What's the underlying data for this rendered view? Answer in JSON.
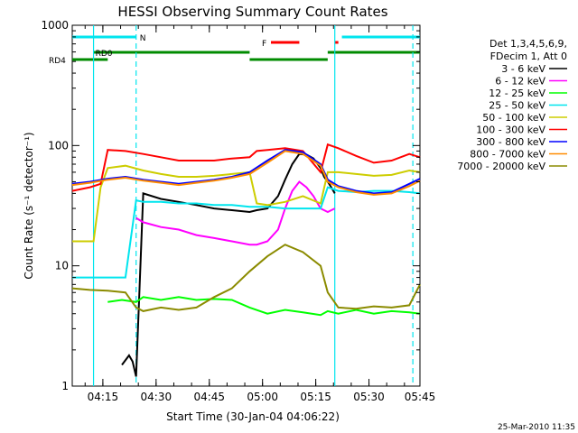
{
  "chart_data": {
    "type": "line",
    "title": "HESSI Observing Summary Count Rates",
    "xlabel": "Start Time (30-Jan-04 04:06:22)",
    "ylabel": "Count Rate (s⁻¹ detector⁻¹)",
    "x_units": "minutes since 04:06:22",
    "xlim": [
      0,
      98
    ],
    "ylim": [
      1,
      1000
    ],
    "y_scale": "log",
    "x_ticks": [
      "04:15",
      "04:30",
      "04:45",
      "05:00",
      "05:15",
      "05:30",
      "05:45"
    ],
    "y_ticks": [
      "1",
      "10",
      "100",
      "1000"
    ],
    "legend_header": [
      "Det 1,3,4,5,6,9,",
      "FDecim 1, Att 0"
    ],
    "footer_date": "25-Mar-2010 11:35",
    "flags": [
      {
        "label": "N",
        "color": "#00e5ee",
        "segments": [
          [
            0,
            18
          ],
          [
            76,
            98
          ]
        ]
      },
      {
        "label": "F",
        "color": "#ff0000",
        "segments": [
          [
            56,
            64
          ],
          [
            74,
            75
          ]
        ]
      },
      {
        "label": "RD0",
        "color": "#008b00",
        "segments": [
          [
            6,
            50
          ],
          [
            72,
            98
          ]
        ]
      },
      {
        "label": "RD4",
        "color": "#008b00",
        "segments": [
          [
            0,
            10
          ],
          [
            50,
            72
          ]
        ]
      }
    ],
    "vertical_lines": [
      {
        "x": 6,
        "style": "solid",
        "color": "#00e5ee"
      },
      {
        "x": 18,
        "style": "dashed",
        "color": "#00e5ee"
      },
      {
        "x": 74,
        "style": "solid",
        "color": "#00e5ee"
      },
      {
        "x": 96,
        "style": "dashed",
        "color": "#00e5ee"
      }
    ],
    "series": [
      {
        "name": "3 - 6 keV",
        "color": "#000000",
        "x": [
          14,
          16,
          17,
          18,
          20,
          25,
          30,
          35,
          40,
          45,
          50,
          52,
          55,
          58,
          60,
          62,
          64,
          66,
          68,
          70,
          71,
          72,
          73,
          74,
          75,
          76
        ],
        "y": [
          1.5,
          1.8,
          1.6,
          1.2,
          40,
          36,
          34,
          32,
          30,
          29,
          28,
          29,
          30,
          38,
          52,
          70,
          85,
          84,
          78,
          65,
          55,
          50,
          45,
          40,
          0,
          0
        ]
      },
      {
        "name": "6 - 12 keV",
        "color": "#ff00ff",
        "x": [
          18,
          20,
          25,
          30,
          35,
          40,
          45,
          50,
          52,
          55,
          58,
          60,
          62,
          64,
          66,
          68,
          70,
          72,
          74,
          75
        ],
        "y": [
          25,
          23,
          21,
          20,
          18,
          17,
          16,
          15,
          15,
          16,
          20,
          30,
          42,
          50,
          45,
          38,
          30,
          28,
          30,
          0
        ]
      },
      {
        "name": "12 - 25 keV",
        "color": "#00ff00",
        "x": [
          10,
          14,
          18,
          20,
          25,
          30,
          35,
          40,
          45,
          50,
          55,
          60,
          65,
          70,
          72,
          75,
          80,
          85,
          90,
          95,
          98
        ],
        "y": [
          5,
          5.2,
          5,
          5.5,
          5.2,
          5.5,
          5.2,
          5.3,
          5.2,
          4.5,
          4.0,
          4.3,
          4.1,
          3.9,
          4.2,
          4.0,
          4.3,
          4.0,
          4.2,
          4.1,
          4.0
        ]
      },
      {
        "name": "25 - 50 keV",
        "color": "#00e5ee",
        "x": [
          0,
          5,
          10,
          15,
          18,
          20,
          25,
          30,
          35,
          40,
          45,
          50,
          55,
          60,
          65,
          70,
          72,
          75,
          80,
          85,
          90,
          95,
          98
        ],
        "y": [
          8,
          8,
          8,
          8,
          35,
          34,
          34,
          33,
          33,
          32,
          32,
          31,
          31,
          30,
          30,
          30,
          45,
          42,
          41,
          42,
          42,
          41,
          40
        ]
      },
      {
        "name": "50 - 100 keV",
        "color": "#cdcd00",
        "x": [
          0,
          3,
          6,
          8,
          10,
          15,
          20,
          25,
          30,
          35,
          40,
          45,
          50,
          52,
          55,
          60,
          65,
          70,
          72,
          75,
          80,
          85,
          90,
          95,
          98
        ],
        "y": [
          16,
          16,
          16,
          45,
          65,
          68,
          62,
          58,
          55,
          55,
          56,
          58,
          60,
          33,
          32,
          34,
          38,
          33,
          60,
          60,
          58,
          56,
          57,
          62,
          60
        ]
      },
      {
        "name": "100 - 300 keV",
        "color": "#ff0000",
        "x": [
          0,
          5,
          8,
          10,
          15,
          20,
          25,
          30,
          35,
          40,
          45,
          50,
          52,
          55,
          60,
          65,
          70,
          72,
          75,
          80,
          85,
          90,
          95,
          98
        ],
        "y": [
          42,
          45,
          48,
          92,
          90,
          85,
          80,
          75,
          75,
          75,
          78,
          80,
          90,
          92,
          95,
          90,
          60,
          102,
          95,
          82,
          72,
          75,
          85,
          80
        ]
      },
      {
        "name": "300 - 800 keV",
        "color": "#0000ff",
        "x": [
          0,
          5,
          10,
          15,
          20,
          25,
          30,
          35,
          40,
          45,
          50,
          55,
          60,
          65,
          70,
          72,
          75,
          80,
          85,
          90,
          95,
          98
        ],
        "y": [
          48,
          50,
          53,
          55,
          52,
          50,
          48,
          50,
          52,
          55,
          60,
          75,
          92,
          88,
          70,
          52,
          46,
          42,
          40,
          41,
          48,
          53
        ]
      },
      {
        "name": "800 - 7000 keV",
        "color": "#ff8c00",
        "x": [
          0,
          5,
          10,
          15,
          20,
          25,
          30,
          35,
          40,
          45,
          50,
          55,
          60,
          65,
          70,
          72,
          75,
          80,
          85,
          90,
          95,
          98
        ],
        "y": [
          47,
          49,
          52,
          54,
          51,
          49,
          47,
          49,
          51,
          54,
          58,
          72,
          90,
          85,
          68,
          50,
          45,
          41,
          39,
          40,
          46,
          51
        ]
      },
      {
        "name": "7000 - 20000 keV",
        "color": "#8b8b00",
        "x": [
          0,
          5,
          10,
          15,
          18,
          20,
          25,
          30,
          35,
          40,
          45,
          50,
          55,
          60,
          65,
          70,
          72,
          75,
          80,
          85,
          90,
          95,
          98
        ],
        "y": [
          6.5,
          6.3,
          6.2,
          6.0,
          4.5,
          4.2,
          4.5,
          4.3,
          4.5,
          5.5,
          6.5,
          9,
          12,
          15,
          13,
          10,
          6,
          4.5,
          4.4,
          4.6,
          4.5,
          4.7,
          7
        ]
      }
    ]
  }
}
